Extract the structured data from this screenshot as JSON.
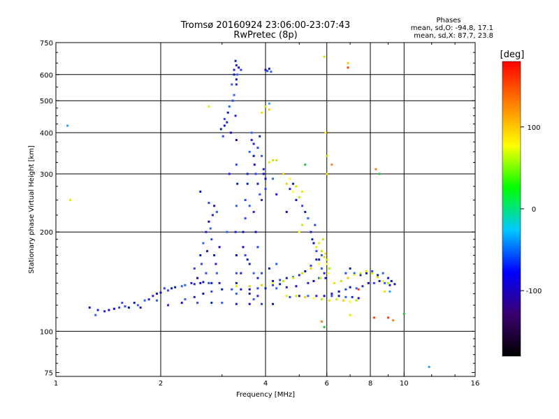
{
  "chart_data": {
    "type": "scatter",
    "title": "Tromsø 20160924 23:06:00-23:07:43",
    "subtitle": "RwPretec (8p)",
    "stats": {
      "heading": "Phases",
      "line_o": "mean, sd,O: -94.8, 17.1",
      "line_x": "mean, sd,X: 87.7, 23.8"
    },
    "xlabel": "Frequency [MHz]",
    "ylabel": "Stationary phase Virtual Height [km]",
    "x_scale": "log",
    "y_scale": "log",
    "xlim": [
      1,
      16
    ],
    "ylim": [
      73,
      750
    ],
    "x_ticks": [
      1,
      2,
      4,
      6,
      8,
      10,
      16
    ],
    "y_ticks": [
      75,
      100,
      200,
      300,
      400,
      500,
      600,
      750
    ],
    "x_gridlines": [
      2,
      4,
      6,
      8,
      10
    ],
    "y_gridlines": [
      100,
      200,
      300,
      400,
      500,
      600
    ],
    "grid": true,
    "colorbar": {
      "label": "[deg]",
      "range": [
        -180,
        180
      ],
      "ticks": [
        -100,
        0,
        100
      ],
      "colors": [
        "#000000",
        "#3a0070",
        "#0000ff",
        "#00c8ff",
        "#00ff00",
        "#ffff00",
        "#ff8000",
        "#ff0000"
      ]
    },
    "series": [
      {
        "values": [
          [
            1.32,
            116
          ],
          [
            1.42,
            116
          ],
          [
            1.52,
            118
          ],
          [
            1.62,
            118
          ],
          [
            1.72,
            120
          ],
          [
            1.85,
            125
          ],
          [
            1.95,
            130
          ],
          [
            2.05,
            135
          ],
          [
            2.15,
            135
          ],
          [
            2.3,
            137
          ],
          [
            2.45,
            140
          ],
          [
            2.6,
            140
          ],
          [
            2.75,
            140
          ],
          [
            1.25,
            118
          ],
          [
            1.3,
            112
          ],
          [
            1.38,
            115
          ],
          [
            1.47,
            117
          ],
          [
            1.58,
            119
          ],
          [
            1.68,
            122
          ],
          [
            1.8,
            124
          ],
          [
            1.9,
            128
          ],
          [
            2.0,
            131
          ],
          [
            2.1,
            133
          ],
          [
            2.2,
            136
          ],
          [
            2.35,
            138
          ],
          [
            2.5,
            139
          ],
          [
            2.65,
            141
          ],
          [
            1.55,
            122
          ],
          [
            1.75,
            118
          ],
          [
            1.95,
            124
          ],
          [
            2.1,
            120
          ],
          [
            2.3,
            122
          ],
          [
            2.55,
            122
          ],
          [
            2.8,
            122
          ],
          [
            3.0,
            122
          ],
          [
            3.3,
            121
          ],
          [
            3.6,
            121
          ],
          [
            3.9,
            121
          ],
          [
            4.2,
            121
          ],
          [
            2.35,
            125
          ],
          [
            2.5,
            127
          ],
          [
            2.65,
            130
          ],
          [
            2.8,
            132
          ],
          [
            3.0,
            134
          ],
          [
            3.2,
            134
          ],
          [
            3.4,
            134
          ],
          [
            3.6,
            134
          ],
          [
            3.8,
            135
          ],
          [
            4.0,
            135
          ],
          [
            4.3,
            135
          ],
          [
            4.6,
            136
          ],
          [
            4.9,
            137
          ],
          [
            2.5,
            155
          ],
          [
            2.6,
            170
          ],
          [
            2.65,
            185
          ],
          [
            2.7,
            200
          ],
          [
            2.75,
            215
          ],
          [
            2.8,
            190
          ],
          [
            2.85,
            170
          ],
          [
            2.9,
            150
          ],
          [
            2.95,
            140
          ],
          [
            2.55,
            145
          ],
          [
            2.62,
            160
          ],
          [
            2.72,
            175
          ],
          [
            2.78,
            205
          ],
          [
            2.82,
            225
          ],
          [
            2.85,
            240
          ],
          [
            2.75,
            245
          ],
          [
            2.6,
            265
          ],
          [
            2.9,
            230
          ],
          [
            2.88,
            160
          ],
          [
            2.95,
            180
          ],
          [
            2.7,
            150
          ],
          [
            2.8,
            140
          ],
          [
            3.1,
            200
          ],
          [
            3.15,
            300
          ],
          [
            3.18,
            400
          ],
          [
            3.22,
            500
          ],
          [
            3.25,
            600
          ],
          [
            3.15,
            480
          ],
          [
            3.1,
            430
          ],
          [
            3.05,
            420
          ],
          [
            3.02,
            390
          ],
          [
            2.98,
            410
          ],
          [
            3.2,
            560
          ],
          [
            3.25,
            620
          ],
          [
            3.3,
            580
          ],
          [
            3.05,
            440
          ],
          [
            3.12,
            460
          ],
          [
            3.25,
            520
          ],
          [
            3.28,
            450
          ],
          [
            3.3,
            380
          ],
          [
            3.3,
            320
          ],
          [
            3.32,
            280
          ],
          [
            3.3,
            240
          ],
          [
            3.28,
            200
          ],
          [
            3.3,
            170
          ],
          [
            3.3,
            150
          ],
          [
            3.3,
            140
          ],
          [
            3.3,
            130
          ],
          [
            3.4,
            150
          ],
          [
            3.45,
            200
          ],
          [
            3.5,
            250
          ],
          [
            3.55,
            300
          ],
          [
            3.6,
            350
          ],
          [
            3.65,
            380
          ],
          [
            3.7,
            340
          ],
          [
            3.75,
            300
          ],
          [
            3.8,
            280
          ],
          [
            3.85,
            260
          ],
          [
            3.9,
            250
          ],
          [
            3.95,
            300
          ],
          [
            3.5,
            220
          ],
          [
            3.55,
            280
          ],
          [
            3.6,
            240
          ],
          [
            3.7,
            230
          ],
          [
            3.75,
            200
          ],
          [
            3.8,
            180
          ],
          [
            3.6,
            160
          ],
          [
            3.7,
            150
          ],
          [
            3.8,
            145
          ],
          [
            3.45,
            180
          ],
          [
            3.5,
            170
          ],
          [
            3.55,
            165
          ],
          [
            3.65,
            400
          ],
          [
            3.7,
            370
          ],
          [
            3.72,
            320
          ],
          [
            3.8,
            360
          ],
          [
            3.85,
            390
          ],
          [
            3.9,
            340
          ],
          [
            3.95,
            310
          ],
          [
            4.0,
            290
          ],
          [
            4.0,
            270
          ],
          [
            3.6,
            130
          ],
          [
            3.7,
            125
          ],
          [
            3.8,
            128
          ],
          [
            4.0,
            620
          ],
          [
            4.05,
            615
          ],
          [
            4.1,
            625
          ],
          [
            4.15,
            612
          ],
          [
            3.3,
            640
          ],
          [
            3.35,
            630
          ],
          [
            3.4,
            620
          ],
          [
            3.28,
            660
          ],
          [
            3.32,
            600
          ],
          [
            3.3,
            560
          ],
          [
            4.2,
            142
          ],
          [
            4.4,
            143
          ],
          [
            4.6,
            145
          ],
          [
            4.8,
            146
          ],
          [
            5.0,
            148
          ],
          [
            5.2,
            152
          ],
          [
            5.4,
            158
          ],
          [
            5.6,
            165
          ],
          [
            5.8,
            170
          ],
          [
            5.3,
            140
          ],
          [
            5.5,
            142
          ],
          [
            5.7,
            145
          ],
          [
            5.2,
            230
          ],
          [
            5.3,
            220
          ],
          [
            5.4,
            200
          ],
          [
            5.5,
            185
          ],
          [
            5.6,
            175
          ],
          [
            5.7,
            165
          ],
          [
            5.8,
            155
          ],
          [
            5.9,
            150
          ],
          [
            5.95,
            145
          ],
          [
            5.55,
            210
          ],
          [
            5.45,
            190
          ],
          [
            4.5,
            300
          ],
          [
            4.7,
            270
          ],
          [
            4.9,
            250
          ],
          [
            5.1,
            240
          ],
          [
            4.8,
            280
          ],
          [
            4.2,
            290
          ],
          [
            4.3,
            260
          ],
          [
            4.6,
            230
          ],
          [
            3.9,
            150
          ],
          [
            4.1,
            155
          ],
          [
            4.3,
            160
          ],
          [
            6.2,
            130
          ],
          [
            6.5,
            132
          ],
          [
            6.8,
            134
          ],
          [
            7.0,
            136
          ],
          [
            7.3,
            135
          ],
          [
            7.6,
            137
          ],
          [
            7.9,
            140
          ],
          [
            8.2,
            140
          ],
          [
            8.5,
            142
          ],
          [
            8.8,
            140
          ],
          [
            9.1,
            138
          ],
          [
            9.4,
            139
          ],
          [
            6.8,
            150
          ],
          [
            7.0,
            155
          ],
          [
            7.2,
            150
          ],
          [
            7.5,
            148
          ],
          [
            7.8,
            150
          ],
          [
            8.1,
            152
          ],
          [
            8.4,
            148
          ],
          [
            8.7,
            150
          ],
          [
            9.0,
            145
          ],
          [
            9.2,
            142
          ],
          [
            4.7,
            127
          ],
          [
            5.0,
            128
          ],
          [
            5.3,
            128
          ],
          [
            5.6,
            128
          ],
          [
            5.9,
            128
          ],
          [
            6.2,
            128
          ],
          [
            6.5,
            128
          ],
          [
            6.8,
            127
          ],
          [
            7.1,
            127
          ],
          [
            7.4,
            126
          ],
          [
            4.2,
            138
          ],
          [
            4.4,
            139
          ]
        ]
      },
      {
        "values": [
          [
            3.3,
            137
          ],
          [
            3.6,
            137
          ],
          [
            3.9,
            138
          ],
          [
            4.2,
            140
          ],
          [
            4.5,
            142
          ],
          [
            4.8,
            145
          ],
          [
            5.1,
            150
          ],
          [
            5.4,
            155
          ],
          [
            5.7,
            160
          ],
          [
            6.0,
            165
          ],
          [
            5.7,
            185
          ],
          [
            5.8,
            175
          ],
          [
            5.9,
            168
          ],
          [
            6.0,
            160
          ],
          [
            6.1,
            155
          ],
          [
            5.6,
            180
          ],
          [
            5.85,
            190
          ],
          [
            5.95,
            172
          ],
          [
            6.05,
            150
          ],
          [
            5.75,
            145
          ],
          [
            6.3,
            140
          ],
          [
            6.6,
            142
          ],
          [
            6.9,
            145
          ],
          [
            7.2,
            148
          ],
          [
            7.5,
            150
          ],
          [
            7.8,
            152
          ],
          [
            8.1,
            150
          ],
          [
            8.4,
            146
          ],
          [
            8.7,
            142
          ],
          [
            9.0,
            140
          ],
          [
            4.6,
            128
          ],
          [
            4.9,
            128
          ],
          [
            5.2,
            127
          ],
          [
            5.5,
            126
          ],
          [
            5.8,
            125
          ],
          [
            6.1,
            124
          ],
          [
            6.4,
            125
          ],
          [
            6.7,
            124
          ],
          [
            7.0,
            123
          ],
          [
            7.3,
            124
          ],
          [
            4.1,
            325
          ],
          [
            4.3,
            330
          ],
          [
            4.5,
            300
          ],
          [
            4.7,
            290
          ],
          [
            4.9,
            275
          ],
          [
            5.1,
            265
          ],
          [
            4.2,
            330
          ],
          [
            4.6,
            280
          ],
          [
            4.8,
            265
          ],
          [
            5.0,
            255
          ],
          [
            3.9,
            460
          ],
          [
            4.0,
            480
          ],
          [
            4.1,
            470
          ],
          [
            5.95,
            400
          ],
          [
            6.0,
            340
          ],
          [
            6.0,
            300
          ],
          [
            5.9,
            680
          ],
          [
            6.9,
            650
          ],
          [
            5.0,
            200
          ],
          [
            5.1,
            210
          ]
        ]
      },
      {
        "values": [
          [
            6.9,
            630
          ],
          [
            8.3,
            310
          ],
          [
            8.5,
            300
          ],
          [
            1.08,
            420
          ],
          [
            1.1,
            250
          ],
          [
            9.0,
            110
          ],
          [
            9.3,
            108
          ],
          [
            10.0,
            113
          ],
          [
            11.8,
            78
          ],
          [
            7.0,
            112
          ],
          [
            8.2,
            110
          ],
          [
            5.8,
            107
          ],
          [
            5.9,
            103
          ],
          [
            9.1,
            132
          ],
          [
            8.8,
            132
          ],
          [
            7.4,
            134
          ],
          [
            6.2,
            320
          ],
          [
            5.2,
            320
          ],
          [
            4.1,
            490
          ],
          [
            2.75,
            480
          ]
        ]
      }
    ]
  }
}
